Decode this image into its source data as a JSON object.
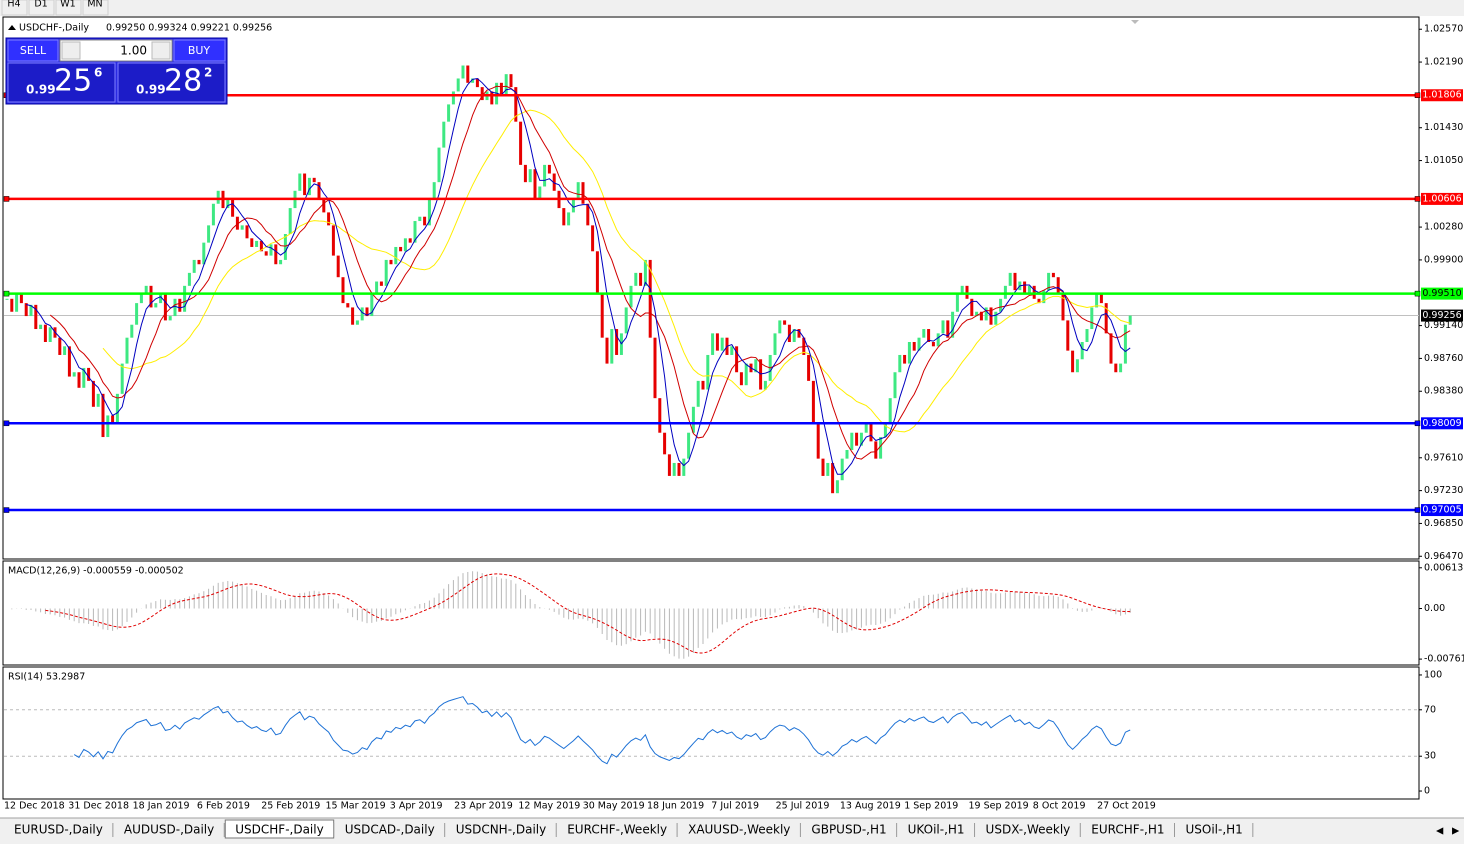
{
  "toolbar": {
    "timeframes": [
      "H4",
      "D1",
      "W1",
      "MN"
    ]
  },
  "trade_panel": {
    "sell": "SELL",
    "buy": "BUY",
    "lots": "1.00",
    "sell_price": {
      "big": "0.99",
      "main": "25",
      "pip": "6"
    },
    "buy_price": {
      "big": "0.99",
      "main": "28",
      "pip": "2"
    }
  },
  "price_chart": {
    "title": "USDCHF-,Daily",
    "quote": "0.99250 0.99324 0.99221 0.99256",
    "bull_color": "#3ee882",
    "bear_color": "#e60000",
    "ylim": [
      0.9645,
      1.027
    ],
    "yticks": [
      {
        "value": 1.0257,
        "label": "1.02570"
      },
      {
        "value": 1.0219,
        "label": "1.02190"
      },
      {
        "value": 1.0143,
        "label": "1.01430"
      },
      {
        "value": 1.0105,
        "label": "1.01050"
      },
      {
        "value": 1.0028,
        "label": "1.00280"
      },
      {
        "value": 0.999,
        "label": "0.99900"
      },
      {
        "value": 0.9914,
        "label": "0.99140"
      },
      {
        "value": 0.9876,
        "label": "0.98760"
      },
      {
        "value": 0.9838,
        "label": "0.98380"
      },
      {
        "value": 0.9761,
        "label": "0.97610"
      },
      {
        "value": 0.9723,
        "label": "0.97230"
      },
      {
        "value": 0.9685,
        "label": "0.96850"
      },
      {
        "value": 0.9647,
        "label": "0.96470"
      }
    ],
    "levels": [
      {
        "value": 1.01806,
        "label": "1.01806",
        "color": "#ff0000"
      },
      {
        "value": 1.00606,
        "label": "1.00606",
        "color": "#ff0000"
      },
      {
        "value": 0.9951,
        "label": "0.99510",
        "color": "#00ff00"
      },
      {
        "value": 0.98009,
        "label": "0.98009",
        "color": "#0000ff"
      },
      {
        "value": 0.97005,
        "label": "0.97005",
        "color": "#0000ff"
      }
    ],
    "current": {
      "value": 0.99256,
      "label": "0.99256"
    },
    "closes": [
      0.9945,
      0.993,
      0.9952,
      0.994,
      0.9925,
      0.9938,
      0.991,
      0.9915,
      0.9895,
      0.9912,
      0.99,
      0.988,
      0.989,
      0.9855,
      0.986,
      0.9842,
      0.9865,
      0.985,
      0.982,
      0.9835,
      0.9785,
      0.981,
      0.98,
      0.9835,
      0.987,
      0.99,
      0.9915,
      0.994,
      0.995,
      0.996,
      0.9935,
      0.994,
      0.9952,
      0.992,
      0.9925,
      0.9945,
      0.993,
      0.996,
      0.9975,
      0.999,
      0.9985,
      1.001,
      1.003,
      1.0055,
      1.007,
      1.005,
      1.006,
      1.004,
      1.0025,
      1.003,
      1.0015,
      1.0005,
      1.0012,
      1.0,
      0.9995,
      1.0008,
      0.9985,
      0.999,
      1.002,
      1.005,
      1.007,
      1.009,
      1.0065,
      1.0085,
      1.008,
      1.006,
      1.0045,
      1.003,
      0.9995,
      0.997,
      0.994,
      0.9935,
      0.9915,
      0.992,
      0.9935,
      0.9925,
      0.995,
      0.9965,
      0.996,
      0.999,
      0.9985,
      1.0005,
      1.0,
      1.0015,
      1.001,
      1.0035,
      1.004,
      1.003,
      1.006,
      1.008,
      1.012,
      1.015,
      1.017,
      1.0185,
      1.02,
      1.0215,
      1.0195,
      1.02,
      1.019,
      1.0175,
      1.0185,
      1.017,
      1.0195,
      1.018,
      1.0205,
      1.019,
      1.015,
      1.01,
      1.008,
      1.0095,
      1.006,
      1.0075,
      1.01,
      1.009,
      1.007,
      1.005,
      1.003,
      1.0045,
      1.006,
      1.008,
      1.0055,
      1.003,
      1.0,
      0.995,
      0.99,
      0.987,
      0.991,
      0.988,
      0.9905,
      0.9935,
      0.996,
      0.9975,
      0.996,
      0.999,
      0.99,
      0.983,
      0.979,
      0.9765,
      0.974,
      0.9755,
      0.974,
      0.976,
      0.979,
      0.982,
      0.985,
      0.984,
      0.988,
      0.9905,
      0.9885,
      0.99,
      0.988,
      0.989,
      0.986,
      0.9845,
      0.987,
      0.986,
      0.9875,
      0.984,
      0.985,
      0.988,
      0.9905,
      0.992,
      0.9915,
      0.9895,
      0.991,
      0.99,
      0.988,
      0.985,
      0.98,
      0.976,
      0.974,
      0.9755,
      0.972,
      0.9735,
      0.976,
      0.977,
      0.979,
      0.9775,
      0.979,
      0.98,
      0.978,
      0.976,
      0.9785,
      0.98,
      0.983,
      0.986,
      0.988,
      0.987,
      0.9895,
      0.9885,
      0.99,
      0.991,
      0.9895,
      0.989,
      0.9905,
      0.992,
      0.99,
      0.993,
      0.995,
      0.996,
      0.9945,
      0.9925,
      0.993,
      0.992,
      0.9935,
      0.9915,
      0.993,
      0.9945,
      0.996,
      0.9975,
      0.9955,
      0.9965,
      0.995,
      0.996,
      0.9945,
      0.994,
      0.9955,
      0.9975,
      0.997,
      0.995,
      0.992,
      0.9885,
      0.986,
      0.9875,
      0.9895,
      0.991,
      0.9935,
      0.995,
      0.994,
      0.9905,
      0.987,
      0.986,
      0.987,
      0.9915,
      0.99256
    ],
    "dates": [
      "12 Dec 2018",
      "31 Dec 2018",
      "18 Jan 2019",
      "6 Feb 2019",
      "25 Feb 2019",
      "15 Mar 2019",
      "3 Apr 2019",
      "23 Apr 2019",
      "12 May 2019",
      "30 May 2019",
      "18 Jun 2019",
      "7 Jul 2019",
      "25 Jul 2019",
      "13 Aug 2019",
      "1 Sep 2019",
      "19 Sep 2019",
      "8 Oct 2019",
      "27 Oct 2019"
    ]
  },
  "macd": {
    "label": "MACD(12,26,9) -0.000559 -0.000502",
    "ylim": [
      -0.0085,
      0.007
    ],
    "yticks": [
      {
        "value": 0.00613,
        "label": "0.00613"
      },
      {
        "value": 0,
        "label": "0.00"
      },
      -0.007612
    ]
  },
  "rsi": {
    "label": "RSI(14) 53.2987",
    "ylim": [
      -6,
      106
    ],
    "yticks": [
      100,
      70,
      30,
      0
    ]
  },
  "tabs": {
    "items": [
      "EURUSD-,Daily",
      "AUDUSD-,Daily",
      "USDCHF-,Daily",
      "USDCAD-,Daily",
      "USDCNH-,Daily",
      "EURCHF-,Weekly",
      "XAUUSD-,Weekly",
      "GBPUSD-,H1",
      "UKOil-,H1",
      "USDX-,Weekly",
      "EURCHF-,H1",
      "USOil-,H1"
    ],
    "active": 2
  }
}
